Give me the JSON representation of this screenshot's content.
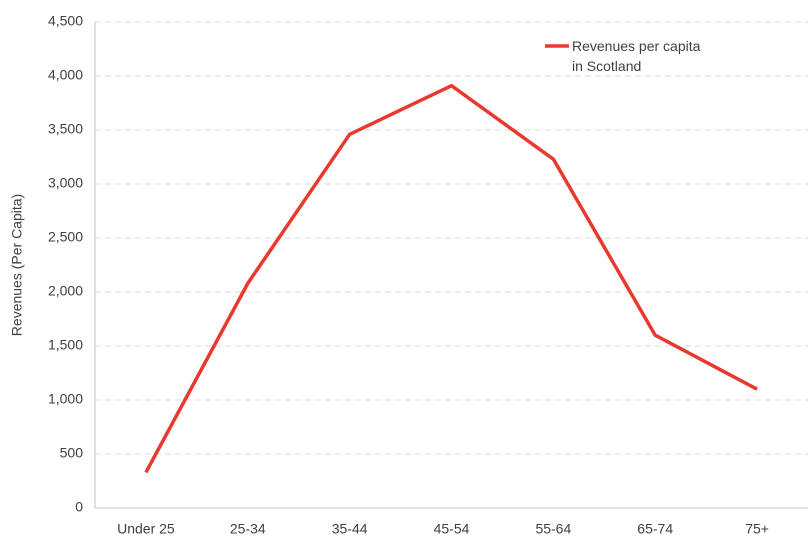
{
  "chart_data": {
    "type": "line",
    "y_label": "Revenues (Per Capita)",
    "categories": [
      "Under 25",
      "25-34",
      "35-44",
      "45-54",
      "55-64",
      "65-74",
      "75+"
    ],
    "series": [
      {
        "name": "Revenues per capita in Scotland",
        "color": "#e8392f",
        "values": [
          330,
          2080,
          3460,
          3910,
          3230,
          1600,
          1100
        ]
      }
    ],
    "ylim": [
      0,
      4500
    ],
    "yticks": [
      0,
      500,
      {
        "value": 1000,
        "label": "1,000"
      },
      {
        "value": 1500,
        "label": "1,500"
      },
      {
        "value": 2000,
        "label": "2,000"
      },
      {
        "value": 2500,
        "label": "2,500"
      },
      {
        "value": 3000,
        "label": "3,000"
      },
      {
        "value": 3500,
        "label": "3,500"
      },
      {
        "value": 4000,
        "label": "4,000"
      },
      {
        "value": 4500,
        "label": "4,500"
      }
    ],
    "grid": true,
    "legend": "top-right"
  }
}
